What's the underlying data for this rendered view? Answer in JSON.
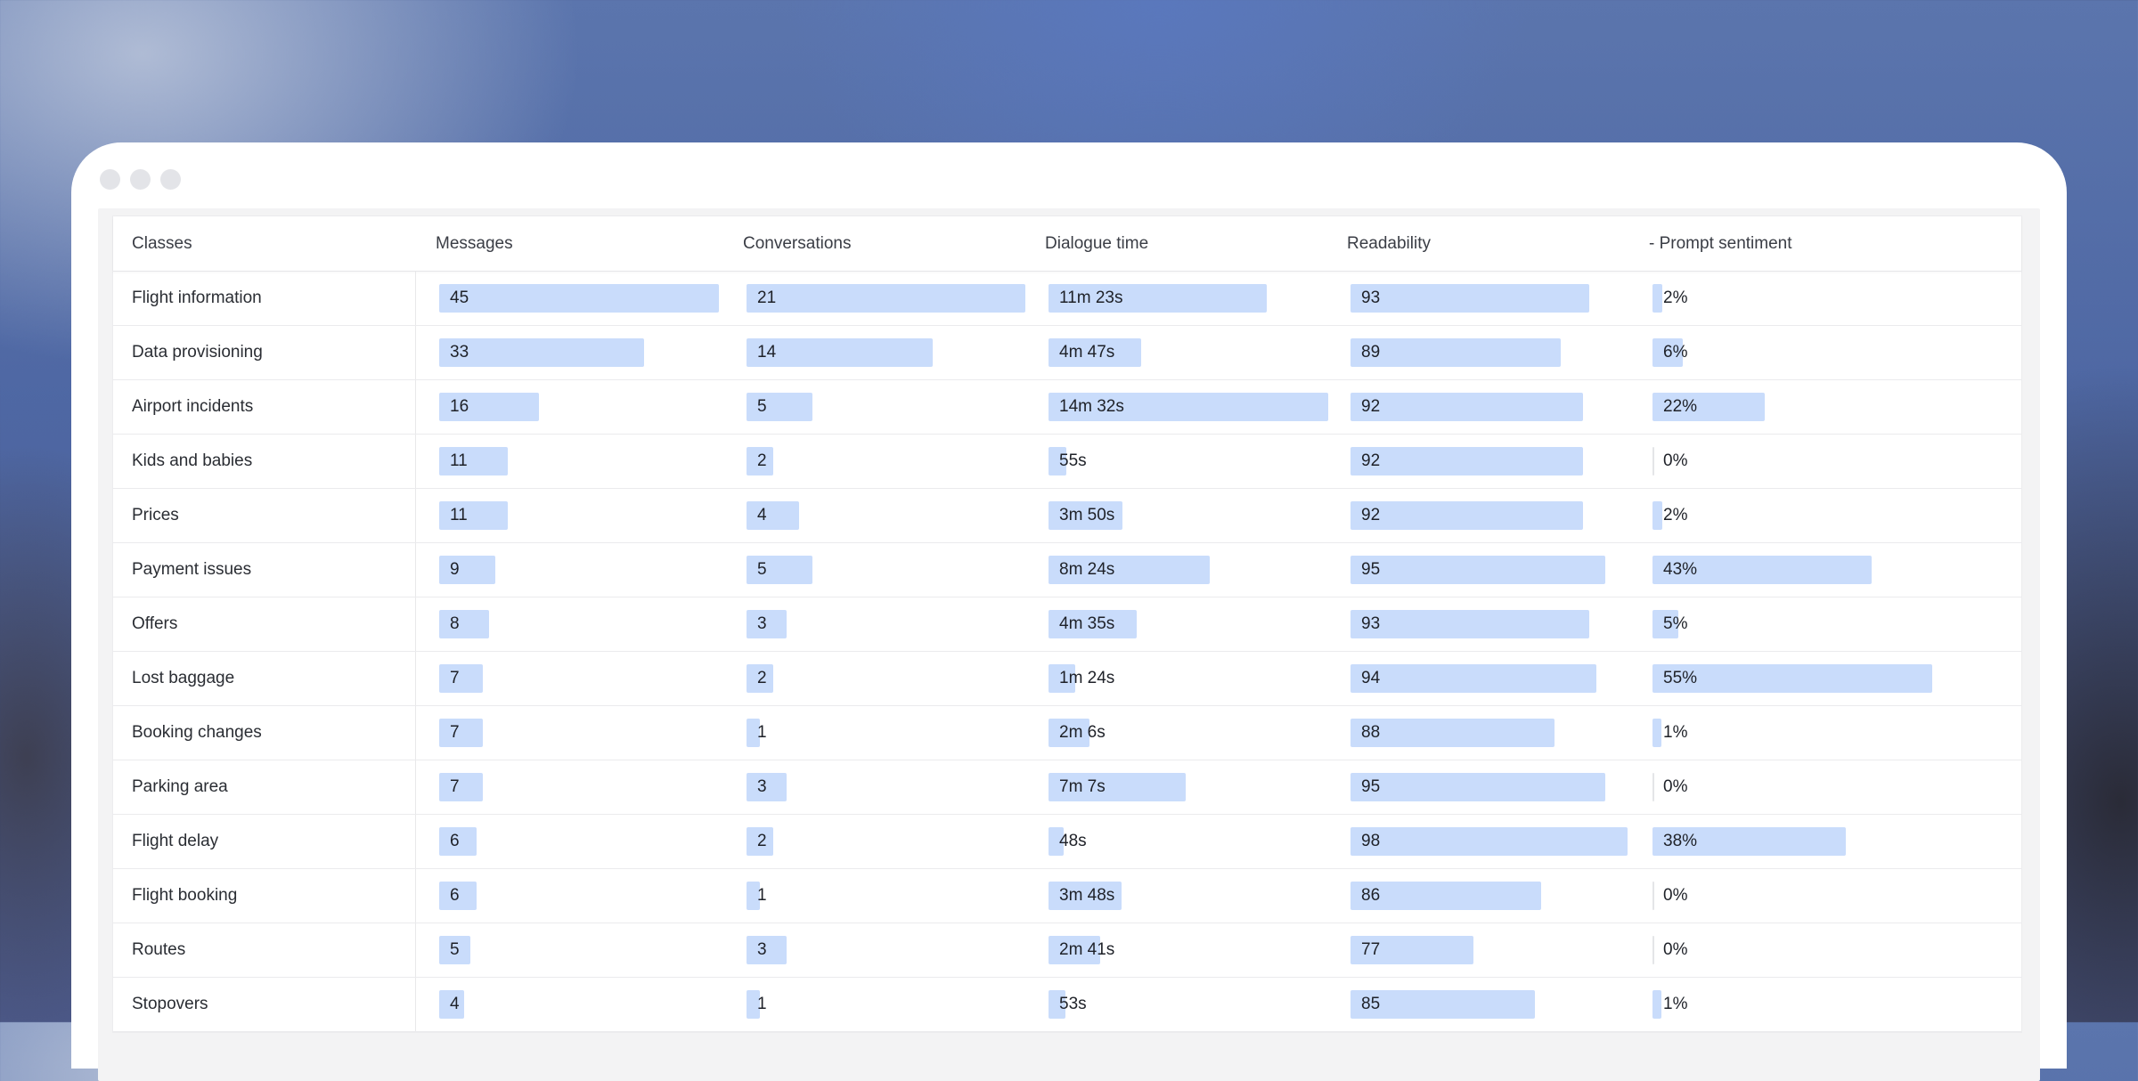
{
  "header": {
    "classes": "Classes",
    "messages": "Messages",
    "conversations": "Conversations",
    "dialogue_time": "Dialogue time",
    "readability": "Readability",
    "prompt_sentiment": "- Prompt sentiment"
  },
  "rows": [
    {
      "class": "Flight information",
      "messages": "45",
      "messages_pct": 1.0,
      "conversations": "21",
      "conversations_pct": 1.0,
      "dialogue": "11m 23s",
      "dialogue_pct": 0.78,
      "readability": "93",
      "readability_pct": 0.855,
      "sentiment": "2%",
      "sentiment_pct": 0.036
    },
    {
      "class": "Data provisioning",
      "messages": "33",
      "messages_pct": 0.733,
      "conversations": "14",
      "conversations_pct": 0.667,
      "dialogue": "4m 47s",
      "dialogue_pct": 0.33,
      "readability": "89",
      "readability_pct": 0.75,
      "sentiment": "6%",
      "sentiment_pct": 0.109
    },
    {
      "class": "Airport incidents",
      "messages": "16",
      "messages_pct": 0.356,
      "conversations": "5",
      "conversations_pct": 0.238,
      "dialogue": "14m 32s",
      "dialogue_pct": 1.0,
      "readability": "92",
      "readability_pct": 0.83,
      "sentiment": "22%",
      "sentiment_pct": 0.4
    },
    {
      "class": "Kids and babies",
      "messages": "11",
      "messages_pct": 0.244,
      "conversations": "2",
      "conversations_pct": 0.095,
      "dialogue": "55s",
      "dialogue_pct": 0.063,
      "readability": "92",
      "readability_pct": 0.83,
      "sentiment": "0%",
      "sentiment_pct": 0.0
    },
    {
      "class": "Prices",
      "messages": "11",
      "messages_pct": 0.244,
      "conversations": "4",
      "conversations_pct": 0.19,
      "dialogue": "3m 50s",
      "dialogue_pct": 0.264,
      "readability": "92",
      "readability_pct": 0.83,
      "sentiment": "2%",
      "sentiment_pct": 0.036
    },
    {
      "class": "Payment issues",
      "messages": "9",
      "messages_pct": 0.2,
      "conversations": "5",
      "conversations_pct": 0.238,
      "dialogue": "8m 24s",
      "dialogue_pct": 0.578,
      "readability": "95",
      "readability_pct": 0.91,
      "sentiment": "43%",
      "sentiment_pct": 0.782
    },
    {
      "class": "Offers",
      "messages": "8",
      "messages_pct": 0.178,
      "conversations": "3",
      "conversations_pct": 0.143,
      "dialogue": "4m 35s",
      "dialogue_pct": 0.315,
      "readability": "93",
      "readability_pct": 0.855,
      "sentiment": "5%",
      "sentiment_pct": 0.091
    },
    {
      "class": "Lost baggage",
      "messages": "7",
      "messages_pct": 0.156,
      "conversations": "2",
      "conversations_pct": 0.095,
      "dialogue": "1m 24s",
      "dialogue_pct": 0.096,
      "readability": "94",
      "readability_pct": 0.88,
      "sentiment": "55%",
      "sentiment_pct": 1.0
    },
    {
      "class": "Booking changes",
      "messages": "7",
      "messages_pct": 0.156,
      "conversations": "1",
      "conversations_pct": 0.048,
      "dialogue": "2m 6s",
      "dialogue_pct": 0.145,
      "readability": "88",
      "readability_pct": 0.73,
      "sentiment": "1%",
      "sentiment_pct": 0.018
    },
    {
      "class": "Parking area",
      "messages": "7",
      "messages_pct": 0.156,
      "conversations": "3",
      "conversations_pct": 0.143,
      "dialogue": "7m 7s",
      "dialogue_pct": 0.49,
      "readability": "95",
      "readability_pct": 0.91,
      "sentiment": "0%",
      "sentiment_pct": 0.0
    },
    {
      "class": "Flight delay",
      "messages": "6",
      "messages_pct": 0.133,
      "conversations": "2",
      "conversations_pct": 0.095,
      "dialogue": "48s",
      "dialogue_pct": 0.055,
      "readability": "98",
      "readability_pct": 0.99,
      "sentiment": "38%",
      "sentiment_pct": 0.691
    },
    {
      "class": "Flight booking",
      "messages": "6",
      "messages_pct": 0.133,
      "conversations": "1",
      "conversations_pct": 0.048,
      "dialogue": "3m 48s",
      "dialogue_pct": 0.261,
      "readability": "86",
      "readability_pct": 0.68,
      "sentiment": "0%",
      "sentiment_pct": 0.0
    },
    {
      "class": "Routes",
      "messages": "5",
      "messages_pct": 0.111,
      "conversations": "3",
      "conversations_pct": 0.143,
      "dialogue": "2m 41s",
      "dialogue_pct": 0.185,
      "readability": "77",
      "readability_pct": 0.44,
      "sentiment": "0%",
      "sentiment_pct": 0.0
    },
    {
      "class": "Stopovers",
      "messages": "4",
      "messages_pct": 0.089,
      "conversations": "1",
      "conversations_pct": 0.048,
      "dialogue": "53s",
      "dialogue_pct": 0.061,
      "readability": "85",
      "readability_pct": 0.66,
      "sentiment": "1%",
      "sentiment_pct": 0.018
    }
  ],
  "colors": {
    "bar": "#c9dcfb",
    "window": "#ffffff",
    "panel": "#f3f3f4"
  }
}
